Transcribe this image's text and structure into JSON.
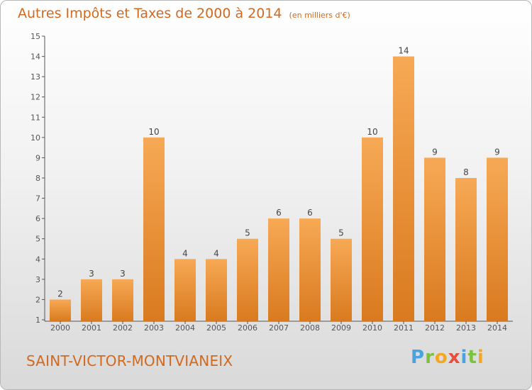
{
  "header": {
    "title": "Autres Impôts et Taxes de 2000 à 2014",
    "subtitle": "(en milliers d'€)"
  },
  "footer": {
    "place": "SAINT-VICTOR-MONTVIANEIX",
    "logo": "Proxiti"
  },
  "colors": {
    "bar_top": "#f7a955",
    "bar_bottom": "#d97a1f",
    "title": "#d2691e",
    "axis": "#555555"
  },
  "chart_data": {
    "type": "bar",
    "title": "Autres Impôts et Taxes de 2000 à 2014",
    "subtitle": "(en milliers d'€)",
    "categories": [
      "2000",
      "2001",
      "2002",
      "2003",
      "2004",
      "2005",
      "2006",
      "2007",
      "2008",
      "2009",
      "2010",
      "2011",
      "2012",
      "2013",
      "2014"
    ],
    "values": [
      2,
      3,
      3,
      10,
      4,
      4,
      5,
      6,
      6,
      5,
      10,
      14,
      9,
      8,
      9
    ],
    "ylim": [
      1,
      15
    ],
    "yticks": [
      1,
      2,
      3,
      4,
      5,
      6,
      7,
      8,
      9,
      10,
      11,
      12,
      13,
      14,
      15
    ],
    "data_labels": true,
    "grid": false,
    "legend": "none"
  }
}
